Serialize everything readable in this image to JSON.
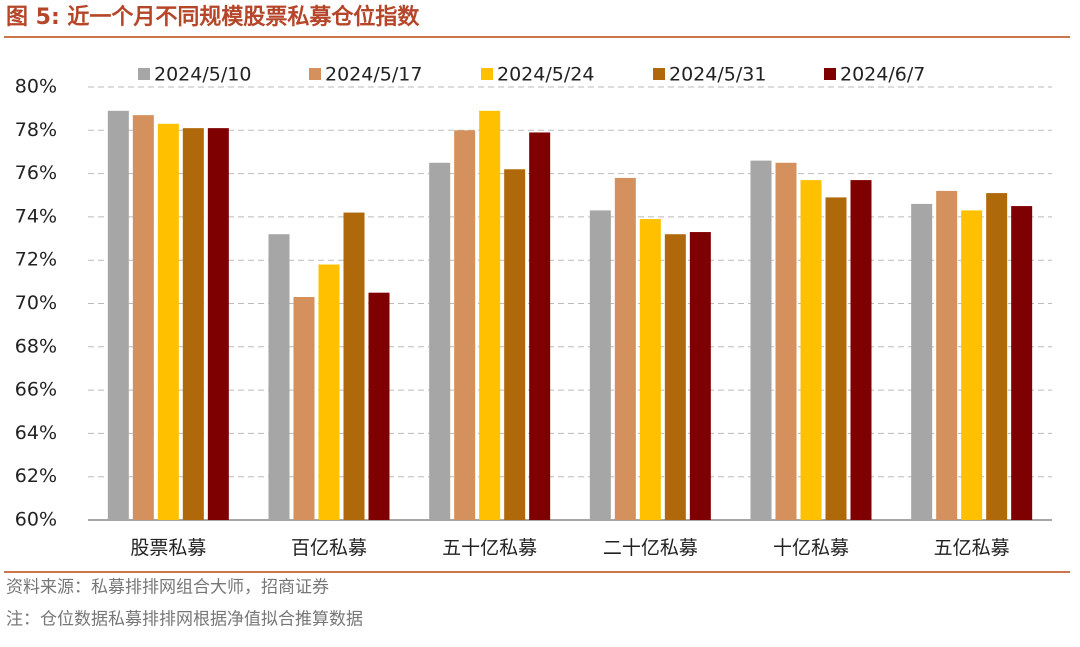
{
  "chart_data": {
    "type": "bar",
    "title": "图 5:  近一个月不同规模股票私募仓位指数",
    "source": "资料来源：私募排排网组合大师，招商证券",
    "note": "注：仓位数据私募排排网根据净值拟合推算数据",
    "categories": [
      "股票私募",
      "百亿私募",
      "五十亿私募",
      "二十亿私募",
      "十亿私募",
      "五亿私募"
    ],
    "series": [
      {
        "name": "2024/5/10",
        "color": "#a6a6a6",
        "values": [
          78.9,
          73.2,
          76.5,
          74.3,
          76.6,
          74.6
        ]
      },
      {
        "name": "2024/5/17",
        "color": "#d4915e",
        "values": [
          78.7,
          70.3,
          78.0,
          75.8,
          76.5,
          75.2
        ]
      },
      {
        "name": "2024/5/24",
        "color": "#ffc000",
        "values": [
          78.3,
          71.8,
          78.9,
          73.9,
          75.7,
          74.3
        ]
      },
      {
        "name": "2024/5/31",
        "color": "#b0690a",
        "values": [
          78.1,
          74.2,
          76.2,
          73.2,
          74.9,
          75.1
        ]
      },
      {
        "name": "2024/6/7",
        "color": "#7f0000",
        "values": [
          78.1,
          70.5,
          77.9,
          73.3,
          75.7,
          74.5
        ]
      }
    ],
    "ylim": [
      60,
      80
    ],
    "yticks": [
      {
        "value": 60,
        "label": "60%"
      },
      {
        "value": 62,
        "label": "62%"
      },
      {
        "value": 64,
        "label": "64%"
      },
      {
        "value": 66,
        "label": "66%"
      },
      {
        "value": 68,
        "label": "68%"
      },
      {
        "value": 70,
        "label": "70%"
      },
      {
        "value": 72,
        "label": "72%"
      },
      {
        "value": 74,
        "label": "74%"
      },
      {
        "value": 76,
        "label": "76%"
      },
      {
        "value": 78,
        "label": "78%"
      },
      {
        "value": 80,
        "label": "80%"
      }
    ],
    "grid": true,
    "legend": "top"
  }
}
